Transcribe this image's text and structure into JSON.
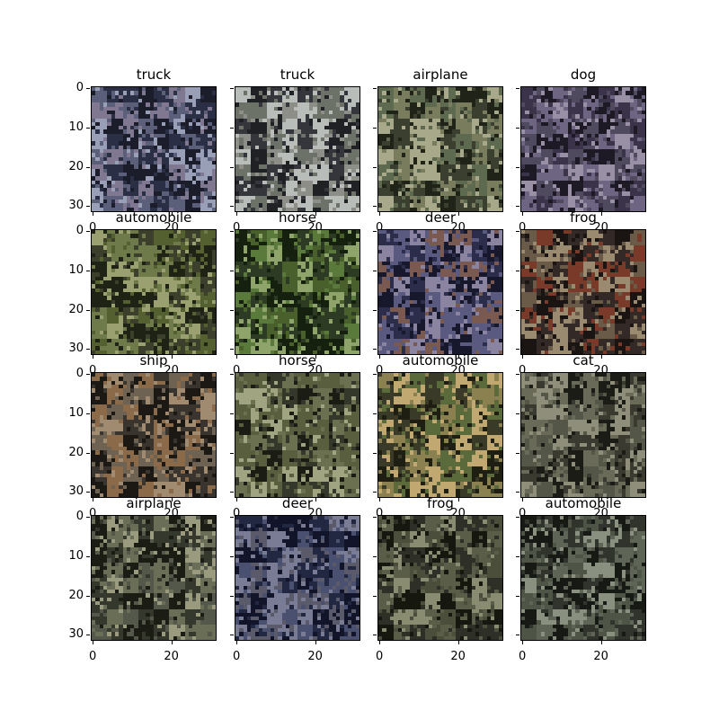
{
  "image": {
    "description_name": "cifar-image-grid",
    "y_tick_labels": [
      "0",
      "10",
      "20",
      "30"
    ],
    "x_tick_labels": [
      "0",
      "20"
    ],
    "panels": [
      {
        "title": "truck",
        "palette": [
          "#2a2f45",
          "#5c5f7a",
          "#9a9fb8",
          "#1b1d2b",
          "#7f7890"
        ]
      },
      {
        "title": "truck",
        "palette": [
          "#34363b",
          "#8d8e87",
          "#b9bdb9",
          "#1f2124",
          "#6d7268"
        ]
      },
      {
        "title": "airplane",
        "palette": [
          "#3b3f2f",
          "#7a7c5e",
          "#a7a98a",
          "#202418",
          "#5e6a50"
        ]
      },
      {
        "title": "dog",
        "palette": [
          "#3a334a",
          "#6e6582",
          "#9a90a6",
          "#1d1a26",
          "#504a5f"
        ]
      },
      {
        "title": "automobile",
        "palette": [
          "#3c3f2c",
          "#6f7a4a",
          "#9aa070",
          "#1f2316",
          "#556030"
        ]
      },
      {
        "title": "horse",
        "palette": [
          "#2d3a24",
          "#5a7a3c",
          "#8fa46a",
          "#16200f",
          "#49602c"
        ]
      },
      {
        "title": "deer",
        "palette": [
          "#2b2d4a",
          "#5a5a80",
          "#8a84a0",
          "#17182b",
          "#7a5a50"
        ]
      },
      {
        "title": "frog",
        "palette": [
          "#332a28",
          "#6a5a48",
          "#9a8a70",
          "#1a1512",
          "#7a3a2a"
        ]
      },
      {
        "title": "ship",
        "palette": [
          "#3a342e",
          "#6e6252",
          "#a08a70",
          "#1c1814",
          "#8a6a48"
        ]
      },
      {
        "title": "horse",
        "palette": [
          "#34382a",
          "#6a7050",
          "#a0a480",
          "#1b1d14",
          "#585e3e"
        ]
      },
      {
        "title": "automobile",
        "palette": [
          "#3a3a28",
          "#8a8050",
          "#c0a870",
          "#1e1e12",
          "#5a6a3a"
        ]
      },
      {
        "title": "cat",
        "palette": [
          "#3a3a30",
          "#6a6a58",
          "#8f8e7a",
          "#1c1c16",
          "#545648"
        ]
      },
      {
        "title": "airplane",
        "palette": [
          "#35382c",
          "#6a6e56",
          "#9a9a7e",
          "#1b1c14",
          "#54584a"
        ]
      },
      {
        "title": "deer",
        "palette": [
          "#232842",
          "#4a5070",
          "#7a7c96",
          "#12142a",
          "#5a5a6a"
        ]
      },
      {
        "title": "frog",
        "palette": [
          "#2e3028",
          "#5a5e48",
          "#8a8c72",
          "#16170f",
          "#4a4e3a"
        ]
      },
      {
        "title": "automobile",
        "palette": [
          "#30342c",
          "#5e6456",
          "#8a9080",
          "#171a14",
          "#4e5446"
        ]
      }
    ]
  }
}
